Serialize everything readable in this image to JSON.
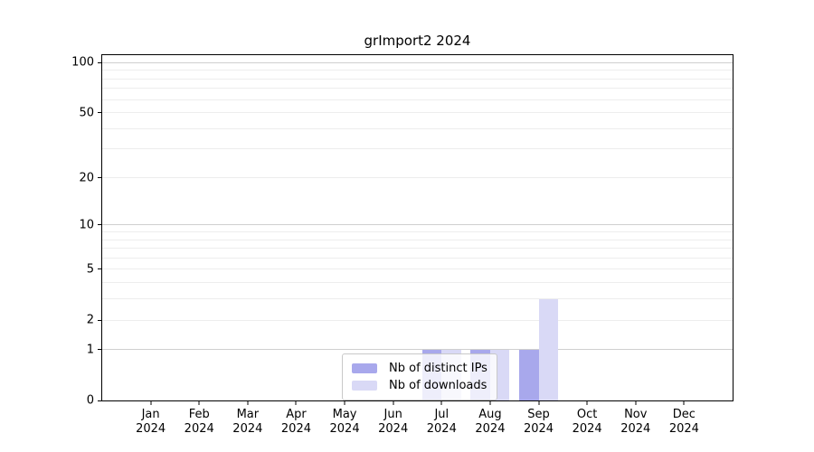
{
  "chart_data": {
    "type": "bar",
    "title": "grImport2 2024",
    "x": [
      "Jan 2024",
      "Feb 2024",
      "Mar 2024",
      "Apr 2024",
      "May 2024",
      "Jun 2024",
      "Jul 2024",
      "Aug 2024",
      "Sep 2024",
      "Oct 2024",
      "Nov 2024",
      "Dec 2024"
    ],
    "series": [
      {
        "name": "Nb of distinct IPs",
        "color": "#a8a8ec",
        "values": [
          0,
          0,
          0,
          0,
          0,
          0,
          1,
          1,
          1,
          0,
          0,
          0
        ]
      },
      {
        "name": "Nb of downloads",
        "color": "#d9d9f6",
        "values": [
          0,
          0,
          0,
          0,
          0,
          0,
          1,
          1,
          3,
          0,
          0,
          0
        ]
      }
    ],
    "xlabel": "",
    "ylabel": "",
    "yscale": "log1p",
    "ylim": [
      0,
      111
    ],
    "yticks": [
      100,
      50,
      20,
      10,
      5,
      2,
      1,
      0
    ],
    "gridlines": {
      "major": [
        1,
        10,
        100
      ],
      "minor": [
        2,
        3,
        4,
        5,
        6,
        7,
        8,
        9,
        20,
        30,
        40,
        50,
        60,
        70,
        80,
        90
      ]
    },
    "grid": "on",
    "legend_position": "inside-bottom-center",
    "colors": {
      "axis": "#000000",
      "grid_major": "#cfcfcf",
      "grid_minor": "#ededed",
      "background": "#ffffff"
    }
  }
}
